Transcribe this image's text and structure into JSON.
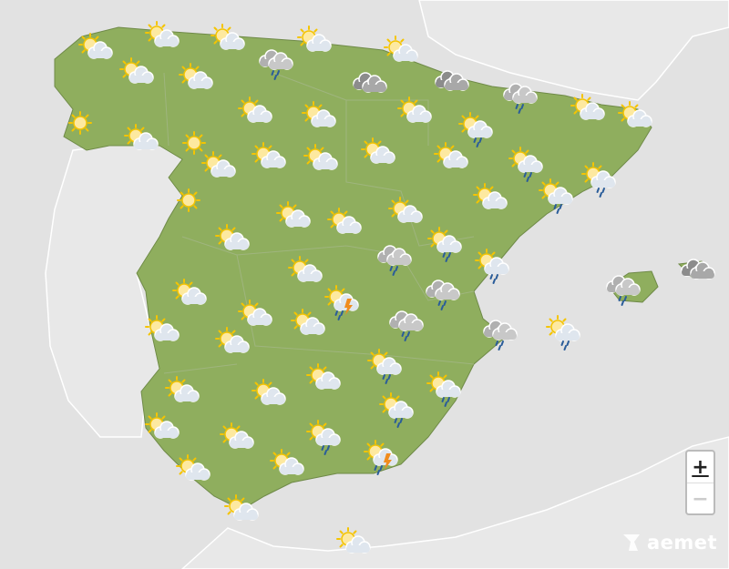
{
  "map": {
    "land_color": "#8fae5e",
    "sea_color": "#e2e2e2",
    "forecast_icons": [
      "sun-cloud",
      "sun-cloud",
      "sun-cloud",
      "sun-cloud",
      "sun-cloud",
      "sun-cloud",
      "sun-cloud",
      "cloud-rain",
      "cloud-dark",
      "cloud-dark",
      "cloud-rain",
      "sun-cloud",
      "sun-cloud",
      "sun",
      "sun-cloud",
      "sun-cloud",
      "sun-cloud",
      "sun-cloud-rain",
      "sun-cloud",
      "sun",
      "sun-cloud",
      "sun-cloud",
      "sun-cloud",
      "sun-cloud",
      "sun-cloud",
      "sun-cloud-rain",
      "sun-cloud-rain",
      "sun",
      "sun-cloud",
      "sun-cloud-rain",
      "sun-cloud",
      "sun-cloud",
      "sun-cloud",
      "sun-cloud",
      "cloud-rain",
      "sun-cloud-rain",
      "sun-cloud-rain",
      "sun-cloud",
      "sun-cloud",
      "sun-cloud-storm",
      "cloud-rain",
      "cloud-rain",
      "cloud-dark",
      "sun-cloud",
      "sun-cloud",
      "cloud-rain",
      "cloud-rain",
      "sun-cloud-rain",
      "sun-cloud",
      "sun-cloud",
      "sun-cloud-rain",
      "sun-cloud",
      "sun-cloud-rain",
      "sun-cloud",
      "sun-cloud",
      "sun-cloud-rain",
      "sun-cloud",
      "sun-cloud",
      "sun-cloud-rain",
      "sun-cloud",
      "sun-cloud-storm",
      "sun-cloud",
      "sun-cloud",
      "sun-cloud"
    ]
  },
  "zoom": {
    "in_label": "+",
    "out_label": "−"
  },
  "logo": {
    "text": "aemet"
  }
}
